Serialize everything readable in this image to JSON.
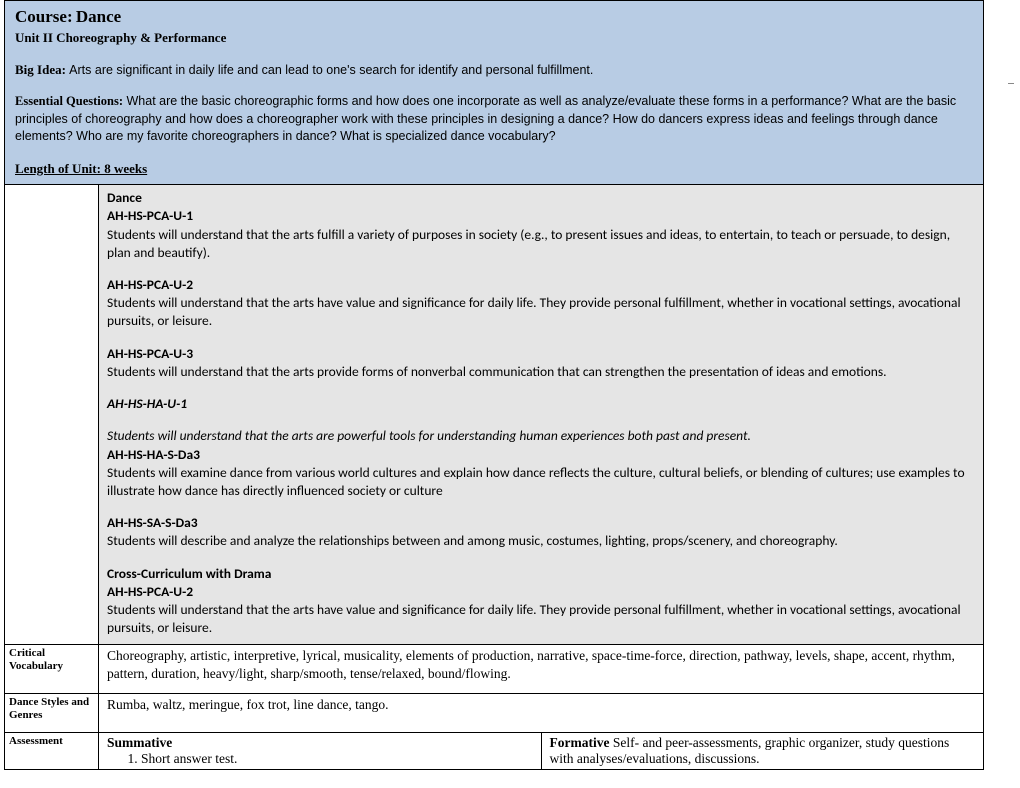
{
  "colors": {
    "header_bg": "#b8cce4",
    "standards_bg": "#e5e5e5",
    "border": "#000000",
    "page_bg": "#ffffff"
  },
  "header": {
    "course_label": "Course:",
    "course_name": "Dance",
    "unit_title": "Unit II Choreography & Performance",
    "big_idea_label": "Big Idea:",
    "big_idea_text": "Arts are significant in daily life and can lead to one's search for identify and personal fulfillment.",
    "eq_label": "Essential Questions:",
    "eq_text": "What are the basic choreographic forms and how does one incorporate as well as analyze/evaluate these forms in a performance? What are the basic principles of choreography and how does a choreographer work with these principles in designing a dance? How do dancers express ideas and feelings through dance elements?  Who are my favorite choreographers in dance? What is specialized dance vocabulary?",
    "length_label": "Length of Unit: 8 weeks"
  },
  "standards": {
    "title": "Dance",
    "items": [
      {
        "code": "AH-HS-PCA-U-1",
        "text": "Students will understand that the arts fulfill a variety of purposes in society (e.g., to present issues and ideas, to entertain, to teach or persuade, to design, plan and beautify).",
        "italic": false
      },
      {
        "code": "AH-HS-PCA-U-2",
        "text": "Students will understand that the arts have value and significance for daily life. They provide personal fulfillment, whether in vocational settings, avocational pursuits, or leisure.",
        "italic": false
      },
      {
        "code": "AH-HS-PCA-U-3",
        "text": "Students will understand that the arts provide forms of nonverbal communication that can strengthen the presentation of ideas and emotions.",
        "italic": false
      },
      {
        "code": "AH-HS-HA-U-1",
        "text": "Students will understand that the arts are powerful tools for understanding human experiences both past and present.",
        "italic": true,
        "code_italic": true,
        "gap_before": false,
        "gap_after": false
      },
      {
        "code": "AH-HS-HA-S-Da3",
        "text": "Students will examine dance from various world cultures and explain how dance reflects the culture, cultural beliefs, or blending of cultures; use examples to illustrate how dance has directly influenced society or culture",
        "italic": false
      },
      {
        "code": "AH-HS-SA-S-Da3",
        "text": "Students will describe and analyze the relationships between and among music, costumes, lighting, props/scenery, and choreography.",
        "italic": false
      }
    ],
    "cross_title": "Cross-Curriculum with Drama",
    "cross_code": "AH-HS-PCA-U-2",
    "cross_text": "Students will understand that the arts have value and significance for daily life. They provide personal fulfillment, whether in vocational settings, avocational pursuits, or leisure."
  },
  "vocab": {
    "label": "Critical Vocabulary",
    "text": "Choreography, artistic, interpretive, lyrical, musicality, elements of production, narrative, space-time-force, direction, pathway, levels, shape, accent, rhythm, pattern, duration, heavy/light, sharp/smooth, tense/relaxed, bound/flowing."
  },
  "styles": {
    "label": "Dance Styles and Genres",
    "text": "Rumba, waltz, meringue, fox trot, line dance, tango."
  },
  "assessment": {
    "label": "Assessment",
    "summative_label": "Summative",
    "summative_item1": "Short answer test.",
    "formative_label": "Formative",
    "formative_text": " Self- and peer-assessments, graphic organizer, study questions with analyses/evaluations, discussions."
  }
}
